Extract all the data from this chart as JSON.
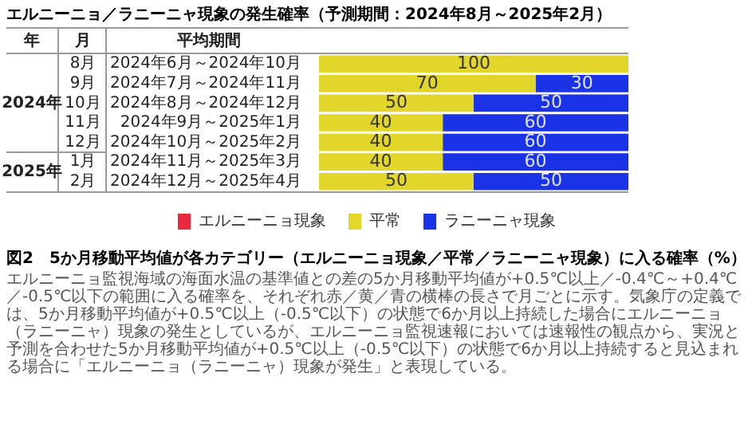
{
  "chart_data": {
    "type": "bar",
    "orientation": "horizontal",
    "stacked": true,
    "title": "エルニーニョ／ラニーニャ現象の発生確率（予測期間：2024年8月～2025年2月）",
    "categories": [
      "2024年6月～2024年10月",
      "2024年7月～2024年11月",
      "2024年8月～2024年12月",
      "2024年9月～2025年1月",
      "2024年10月～2025年2月",
      "2024年11月～2025年3月",
      "2024年12月～2025年4月"
    ],
    "series": [
      {
        "name": "エルニーニョ現象",
        "color": "#e8283c",
        "values": [
          0,
          0,
          0,
          0,
          0,
          0,
          0
        ],
        "value_labels": [
          null,
          null,
          null,
          null,
          null,
          null,
          null
        ]
      },
      {
        "name": "平常",
        "color": "#e3d62a",
        "values": [
          100,
          70,
          50,
          40,
          40,
          40,
          50
        ],
        "value_labels": [
          "100",
          "70",
          "50",
          "40",
          "40",
          "40",
          "50"
        ]
      },
      {
        "name": "ラニーニャ現象",
        "color": "#1a33e6",
        "values": [
          0,
          30,
          50,
          60,
          60,
          60,
          50
        ],
        "value_labels": [
          null,
          "30",
          "50",
          "60",
          "60",
          "60",
          "50"
        ]
      }
    ],
    "legend": "bottom",
    "annotations": [
      "年",
      "月",
      "平均期間",
      "2024年",
      "2025年",
      "8月",
      "9月",
      "10月",
      "11月",
      "12月",
      "1月",
      "2月",
      "図2　5か月移動平均値が各カテゴリー（エルニーニョ現象／平常／ラニーニャ現象）に入る確率（%）",
      "エルニーニョ監視海域の海面水温の基準値との差の5か月移動平均値が+0.5℃以上／-0.4℃～+0.4℃／-0.5℃以下の範囲に入る確率を、それぞれ赤／黄／青の横棒の長さで月ごとに示す。気象庁の定義では、5か月移動平均値が+0.5℃以上（-0.5℃以下）の状態で6か月以上持続した場合にエルニーニョ（ラニーニャ）現象の発生としているが、エルニーニョ監視速報においては速報性の観点から、実況と予測を合わせた5か月移動平均値が+0.5℃以上（-0.5℃以下）の状態で6か月以上持続すると見込まれる場合に「エルニーニョ（ラニーニャ）現象が発生」と表現している。"
    ]
  }
}
